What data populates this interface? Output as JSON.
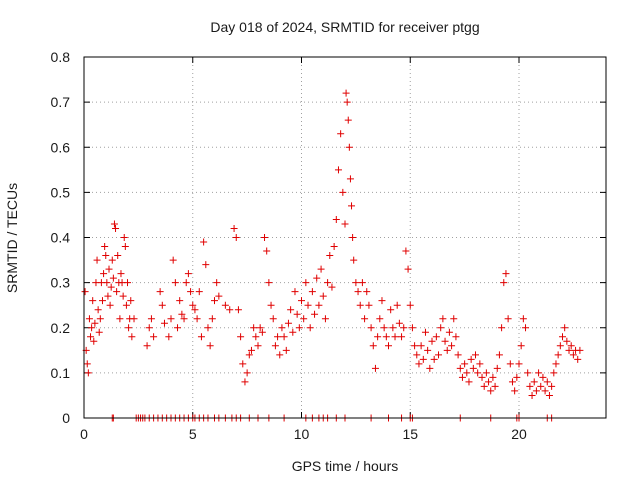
{
  "chart_data": {
    "type": "scatter",
    "title": "Day 018 of 2024, SRMTID for receiver ptgg",
    "xlabel": "GPS time / hours",
    "ylabel": "SRMTID / TECUs",
    "xlim": [
      0,
      24
    ],
    "ylim": [
      0,
      0.8
    ],
    "x_ticks": [
      "0",
      "5",
      "10",
      "15",
      "20"
    ],
    "y_ticks": [
      "0",
      "0.1",
      "0.2",
      "0.3",
      "0.4",
      "0.5",
      "0.6",
      "0.7",
      "0.8"
    ],
    "grid": true,
    "marker": "+",
    "color": "#e00000",
    "series": [
      {
        "name": "SRMTID",
        "points": [
          [
            0.05,
            0.28
          ],
          [
            0.1,
            0.15
          ],
          [
            0.15,
            0.12
          ],
          [
            0.2,
            0.1
          ],
          [
            0.25,
            0.22
          ],
          [
            0.3,
            0.18
          ],
          [
            0.35,
            0.2
          ],
          [
            0.4,
            0.26
          ],
          [
            0.45,
            0.17
          ],
          [
            0.5,
            0.21
          ],
          [
            0.55,
            0.3
          ],
          [
            0.6,
            0.35
          ],
          [
            0.65,
            0.24
          ],
          [
            0.7,
            0.19
          ],
          [
            0.75,
            0.22
          ],
          [
            0.8,
            0.3
          ],
          [
            0.85,
            0.26
          ],
          [
            0.9,
            0.32
          ],
          [
            0.95,
            0.38
          ],
          [
            1.0,
            0.36
          ],
          [
            1.05,
            0.3
          ],
          [
            1.1,
            0.27
          ],
          [
            1.15,
            0.33
          ],
          [
            1.2,
            0.25
          ],
          [
            1.25,
            0.29
          ],
          [
            1.3,
            0.35
          ],
          [
            1.35,
            0.31
          ],
          [
            1.4,
            0.43
          ],
          [
            1.45,
            0.42
          ],
          [
            1.5,
            0.28
          ],
          [
            1.55,
            0.36
          ],
          [
            1.6,
            0.3
          ],
          [
            1.65,
            0.22
          ],
          [
            1.7,
            0.32
          ],
          [
            1.75,
            0.3
          ],
          [
            1.8,
            0.27
          ],
          [
            1.85,
            0.4
          ],
          [
            1.9,
            0.38
          ],
          [
            1.95,
            0.25
          ],
          [
            2.0,
            0.3
          ],
          [
            2.05,
            0.2
          ],
          [
            2.1,
            0.22
          ],
          [
            2.15,
            0.26
          ],
          [
            2.2,
            0.18
          ],
          [
            2.3,
            0.22
          ],
          [
            2.9,
            0.16
          ],
          [
            3.0,
            0.2
          ],
          [
            3.1,
            0.22
          ],
          [
            3.2,
            0.18
          ],
          [
            3.5,
            0.28
          ],
          [
            3.6,
            0.25
          ],
          [
            3.7,
            0.21
          ],
          [
            3.9,
            0.18
          ],
          [
            4.0,
            0.22
          ],
          [
            4.1,
            0.35
          ],
          [
            4.2,
            0.3
          ],
          [
            4.3,
            0.2
          ],
          [
            4.4,
            0.26
          ],
          [
            4.5,
            0.23
          ],
          [
            4.6,
            0.22
          ],
          [
            4.7,
            0.3
          ],
          [
            4.8,
            0.32
          ],
          [
            4.9,
            0.28
          ],
          [
            5.0,
            0.25
          ],
          [
            5.1,
            0.24
          ],
          [
            5.2,
            0.22
          ],
          [
            5.3,
            0.28
          ],
          [
            5.4,
            0.18
          ],
          [
            5.5,
            0.39
          ],
          [
            5.6,
            0.34
          ],
          [
            5.7,
            0.2
          ],
          [
            5.8,
            0.16
          ],
          [
            5.9,
            0.22
          ],
          [
            6.0,
            0.26
          ],
          [
            6.1,
            0.3
          ],
          [
            6.2,
            0.27
          ],
          [
            6.5,
            0.25
          ],
          [
            6.7,
            0.24
          ],
          [
            6.9,
            0.42
          ],
          [
            7.0,
            0.4
          ],
          [
            7.1,
            0.24
          ],
          [
            7.2,
            0.18
          ],
          [
            7.3,
            0.12
          ],
          [
            7.4,
            0.08
          ],
          [
            7.5,
            0.1
          ],
          [
            7.6,
            0.14
          ],
          [
            7.7,
            0.15
          ],
          [
            7.8,
            0.2
          ],
          [
            7.9,
            0.18
          ],
          [
            8.0,
            0.16
          ],
          [
            8.1,
            0.2
          ],
          [
            8.2,
            0.19
          ],
          [
            8.3,
            0.4
          ],
          [
            8.4,
            0.37
          ],
          [
            8.5,
            0.3
          ],
          [
            8.6,
            0.25
          ],
          [
            8.7,
            0.22
          ],
          [
            8.8,
            0.16
          ],
          [
            8.9,
            0.18
          ],
          [
            9.0,
            0.14
          ],
          [
            9.1,
            0.2
          ],
          [
            9.2,
            0.18
          ],
          [
            9.3,
            0.15
          ],
          [
            9.4,
            0.21
          ],
          [
            9.5,
            0.24
          ],
          [
            9.6,
            0.19
          ],
          [
            9.7,
            0.28
          ],
          [
            9.8,
            0.23
          ],
          [
            9.9,
            0.2
          ],
          [
            10.0,
            0.26
          ],
          [
            10.1,
            0.22
          ],
          [
            10.2,
            0.3
          ],
          [
            10.3,
            0.25
          ],
          [
            10.4,
            0.2
          ],
          [
            10.5,
            0.28
          ],
          [
            10.6,
            0.23
          ],
          [
            10.7,
            0.31
          ],
          [
            10.8,
            0.25
          ],
          [
            10.9,
            0.33
          ],
          [
            11.0,
            0.27
          ],
          [
            11.1,
            0.22
          ],
          [
            11.2,
            0.3
          ],
          [
            11.3,
            0.36
          ],
          [
            11.4,
            0.29
          ],
          [
            11.5,
            0.38
          ],
          [
            11.6,
            0.44
          ],
          [
            11.7,
            0.55
          ],
          [
            11.8,
            0.63
          ],
          [
            11.9,
            0.5
          ],
          [
            12.0,
            0.43
          ],
          [
            12.05,
            0.72
          ],
          [
            12.1,
            0.7
          ],
          [
            12.15,
            0.66
          ],
          [
            12.2,
            0.6
          ],
          [
            12.25,
            0.53
          ],
          [
            12.3,
            0.47
          ],
          [
            12.35,
            0.4
          ],
          [
            12.4,
            0.35
          ],
          [
            12.5,
            0.3
          ],
          [
            12.6,
            0.28
          ],
          [
            12.7,
            0.25
          ],
          [
            12.8,
            0.3
          ],
          [
            12.9,
            0.22
          ],
          [
            13.0,
            0.28
          ],
          [
            13.1,
            0.25
          ],
          [
            13.2,
            0.2
          ],
          [
            13.3,
            0.16
          ],
          [
            13.4,
            0.11
          ],
          [
            13.5,
            0.18
          ],
          [
            13.6,
            0.22
          ],
          [
            13.7,
            0.26
          ],
          [
            13.8,
            0.2
          ],
          [
            13.9,
            0.18
          ],
          [
            14.0,
            0.16
          ],
          [
            14.1,
            0.24
          ],
          [
            14.2,
            0.2
          ],
          [
            14.3,
            0.18
          ],
          [
            14.4,
            0.25
          ],
          [
            14.5,
            0.21
          ],
          [
            14.6,
            0.18
          ],
          [
            14.7,
            0.2
          ],
          [
            14.8,
            0.37
          ],
          [
            14.9,
            0.33
          ],
          [
            15.0,
            0.25
          ],
          [
            15.1,
            0.2
          ],
          [
            15.2,
            0.16
          ],
          [
            15.3,
            0.14
          ],
          [
            15.4,
            0.12
          ],
          [
            15.5,
            0.16
          ],
          [
            15.6,
            0.13
          ],
          [
            15.7,
            0.19
          ],
          [
            15.8,
            0.15
          ],
          [
            15.9,
            0.11
          ],
          [
            16.0,
            0.17
          ],
          [
            16.1,
            0.13
          ],
          [
            16.2,
            0.18
          ],
          [
            16.3,
            0.14
          ],
          [
            16.4,
            0.2
          ],
          [
            16.5,
            0.22
          ],
          [
            16.6,
            0.17
          ],
          [
            16.7,
            0.15
          ],
          [
            16.8,
            0.19
          ],
          [
            16.9,
            0.16
          ],
          [
            17.0,
            0.22
          ],
          [
            17.1,
            0.18
          ],
          [
            17.2,
            0.14
          ],
          [
            17.3,
            0.11
          ],
          [
            17.4,
            0.09
          ],
          [
            17.5,
            0.12
          ],
          [
            17.6,
            0.1
          ],
          [
            17.7,
            0.08
          ],
          [
            17.8,
            0.13
          ],
          [
            17.9,
            0.11
          ],
          [
            18.0,
            0.14
          ],
          [
            18.1,
            0.1
          ],
          [
            18.2,
            0.12
          ],
          [
            18.3,
            0.09
          ],
          [
            18.4,
            0.07
          ],
          [
            18.5,
            0.1
          ],
          [
            18.6,
            0.08
          ],
          [
            18.7,
            0.06
          ],
          [
            18.8,
            0.09
          ],
          [
            18.9,
            0.07
          ],
          [
            19.0,
            0.11
          ],
          [
            19.1,
            0.14
          ],
          [
            19.2,
            0.2
          ],
          [
            19.3,
            0.3
          ],
          [
            19.4,
            0.32
          ],
          [
            19.5,
            0.22
          ],
          [
            19.6,
            0.12
          ],
          [
            19.7,
            0.08
          ],
          [
            19.8,
            0.06
          ],
          [
            19.9,
            0.09
          ],
          [
            20.0,
            0.12
          ],
          [
            20.1,
            0.16
          ],
          [
            20.2,
            0.22
          ],
          [
            20.3,
            0.2
          ],
          [
            20.4,
            0.1
          ],
          [
            20.5,
            0.07
          ],
          [
            20.6,
            0.05
          ],
          [
            20.7,
            0.08
          ],
          [
            20.8,
            0.06
          ],
          [
            20.9,
            0.1
          ],
          [
            21.0,
            0.07
          ],
          [
            21.1,
            0.09
          ],
          [
            21.2,
            0.06
          ],
          [
            21.3,
            0.08
          ],
          [
            21.4,
            0.05
          ],
          [
            21.5,
            0.07
          ],
          [
            21.6,
            0.1
          ],
          [
            21.7,
            0.12
          ],
          [
            21.8,
            0.14
          ],
          [
            21.9,
            0.16
          ],
          [
            22.0,
            0.18
          ],
          [
            22.1,
            0.2
          ],
          [
            22.2,
            0.17
          ],
          [
            22.3,
            0.15
          ],
          [
            22.4,
            0.16
          ],
          [
            22.5,
            0.14
          ],
          [
            22.6,
            0.15
          ],
          [
            22.7,
            0.13
          ],
          [
            22.8,
            0.15
          ]
        ],
        "zero_points": [
          1.3,
          1.35,
          2.4,
          2.5,
          2.6,
          2.7,
          2.8,
          3.0,
          3.2,
          3.4,
          3.6,
          3.8,
          4.0,
          4.2,
          4.4,
          4.6,
          4.8,
          5.0,
          5.1,
          5.3,
          5.5,
          5.7,
          6.0,
          6.2,
          6.5,
          6.8,
          7.0,
          7.2,
          7.6,
          8.0,
          8.5,
          9.2,
          10.2,
          10.5,
          10.8,
          11.0,
          11.2,
          11.6,
          12.0,
          13.2,
          14.0,
          14.6,
          15.0,
          15.1,
          17.3,
          18.7,
          19.9,
          20.0,
          21.3,
          21.5
        ]
      }
    ]
  }
}
